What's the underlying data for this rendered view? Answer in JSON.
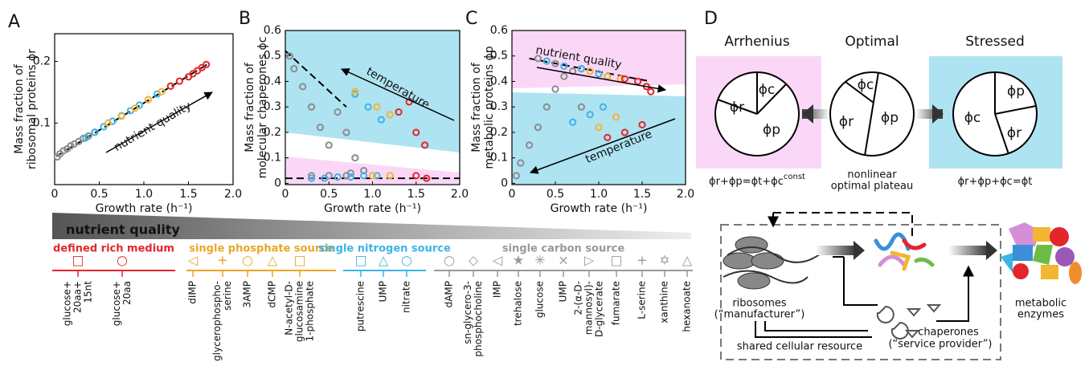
{
  "chart_data": [
    {
      "type": "scatter",
      "panel": "A",
      "ylabel": [
        "Mass fraction of",
        "ribosomal proteins ϕr"
      ],
      "xlabel": "Growth rate (h⁻¹)",
      "xlim": [
        0,
        2
      ],
      "xticks": [
        0,
        0.5,
        {
          "value": 1,
          "label": "1.0"
        },
        1.5,
        {
          "value": 2,
          "label": "2.0"
        }
      ],
      "ylim": [
        0,
        0.245
      ],
      "yticks": [
        0.1,
        0.2
      ],
      "annotations": [
        "nutrient quality"
      ],
      "fits": [
        {
          "color": "#000000",
          "x": [
            0.02,
            1.72
          ],
          "values": [
            0.046,
            0.196
          ]
        }
      ],
      "series": [
        {
          "color": "#8c8c8c",
          "x": [
            0.03,
            0.06,
            0.1,
            0.14,
            0.18,
            0.22,
            0.27,
            0.32,
            0.38,
            0.45
          ],
          "values": [
            0.045,
            0.05,
            0.055,
            0.058,
            0.063,
            0.066,
            0.07,
            0.075,
            0.079,
            0.085
          ]
        },
        {
          "color": "#3cb4e6",
          "x": [
            0.35,
            0.45,
            0.55,
            0.65,
            0.75,
            0.85,
            0.95,
            1.05,
            1.15
          ],
          "values": [
            0.076,
            0.085,
            0.094,
            0.103,
            0.112,
            0.12,
            0.129,
            0.138,
            0.147
          ]
        },
        {
          "color": "#f2b632",
          "x": [
            0.6,
            0.75,
            0.9,
            1.05,
            1.2,
            1.3
          ],
          "values": [
            0.1,
            0.111,
            0.124,
            0.138,
            0.151,
            0.16
          ]
        },
        {
          "color": "#e3262b",
          "x": [
            1.3,
            1.4,
            1.5,
            1.55,
            1.6,
            1.65,
            1.7
          ],
          "values": [
            0.16,
            0.168,
            0.175,
            0.18,
            0.185,
            0.19,
            0.195
          ]
        }
      ]
    },
    {
      "type": "scatter",
      "panel": "B",
      "ylabel": [
        "Mass fraction of",
        "molecular chaperones ϕc"
      ],
      "xlabel": "Growth rate (h⁻¹)",
      "xlim": [
        0,
        2
      ],
      "xticks": [
        0,
        0.5,
        {
          "value": 1,
          "label": "1.0"
        },
        1.5,
        {
          "value": 2,
          "label": "2.0"
        }
      ],
      "ylim": [
        -0.005,
        0.6
      ],
      "yticks": [
        0,
        0.1,
        0.2,
        0.3,
        0.4,
        0.5,
        0.6
      ],
      "annotations": [
        "temperature"
      ],
      "fits": [
        {
          "color": "#000000",
          "x": [
            0,
            2
          ],
          "values": [
            0.02,
            0.02
          ]
        },
        {
          "color": "#000000",
          "x": [
            0,
            0.7
          ],
          "values": [
            0.52,
            0.3
          ]
        }
      ],
      "series": [
        {
          "color": "#8c8c8c",
          "x": [
            0.05,
            0.1,
            0.2,
            0.3,
            0.4,
            0.5,
            0.6,
            0.7,
            0.8,
            0.9,
            0.3,
            0.5,
            0.7,
            0.75
          ],
          "values": [
            0.5,
            0.45,
            0.38,
            0.3,
            0.22,
            0.15,
            0.28,
            0.2,
            0.1,
            0.05,
            0.03,
            0.03,
            0.03,
            0.04
          ]
        },
        {
          "color": "#3cb4e6",
          "x": [
            0.3,
            0.45,
            0.6,
            0.75,
            0.9,
            1.05,
            0.8,
            0.95,
            1.1
          ],
          "values": [
            0.02,
            0.02,
            0.025,
            0.025,
            0.03,
            0.03,
            0.35,
            0.3,
            0.25
          ]
        },
        {
          "color": "#f2b632",
          "x": [
            0.8,
            1.05,
            1.2,
            1.0,
            1.2
          ],
          "values": [
            0.36,
            0.3,
            0.27,
            0.03,
            0.03
          ]
        },
        {
          "color": "#e3262b",
          "x": [
            1.3,
            1.42,
            1.5,
            1.6,
            1.5,
            1.62
          ],
          "values": [
            0.28,
            0.32,
            0.2,
            0.15,
            0.03,
            0.02
          ]
        }
      ]
    },
    {
      "type": "scatter",
      "panel": "C",
      "ylabel": [
        "Mass fraction of",
        "metabolic proteins ϕp"
      ],
      "xlabel": "Growth rate (h⁻¹)",
      "xlim": [
        0,
        2
      ],
      "xticks": [
        0,
        0.5,
        {
          "value": 1,
          "label": "1.0"
        },
        1.5,
        {
          "value": 2,
          "label": "2.0"
        }
      ],
      "ylim": [
        -0.005,
        0.6
      ],
      "yticks": [
        0,
        0.1,
        0.2,
        0.3,
        0.4,
        0.5,
        0.6
      ],
      "annotations": [
        "nutrient quality",
        "temperature"
      ],
      "fits": [
        {
          "color": "#000000",
          "x": [
            0.2,
            1.6
          ],
          "values": [
            0.49,
            0.4
          ]
        }
      ],
      "series": [
        {
          "color": "#8c8c8c",
          "x": [
            0.05,
            0.1,
            0.2,
            0.3,
            0.4,
            0.5,
            0.6,
            0.7,
            0.8,
            0.3,
            0.5,
            0.8
          ],
          "values": [
            0.03,
            0.08,
            0.15,
            0.22,
            0.3,
            0.37,
            0.42,
            0.44,
            0.3,
            0.49,
            0.47,
            0.45
          ]
        },
        {
          "color": "#3cb4e6",
          "x": [
            0.4,
            0.6,
            0.8,
            1.0,
            1.1,
            0.7,
            0.9,
            1.05
          ],
          "values": [
            0.48,
            0.46,
            0.45,
            0.43,
            0.42,
            0.24,
            0.27,
            0.3
          ]
        },
        {
          "color": "#f2b632",
          "x": [
            0.9,
            1.1,
            1.25,
            1.0,
            1.2
          ],
          "values": [
            0.44,
            0.42,
            0.41,
            0.22,
            0.26
          ]
        },
        {
          "color": "#e3262b",
          "x": [
            1.3,
            1.45,
            1.55,
            1.6,
            1.1,
            1.3,
            1.5
          ],
          "values": [
            0.41,
            0.4,
            0.38,
            0.36,
            0.18,
            0.2,
            0.23
          ]
        }
      ]
    }
  ],
  "legend": {
    "title": "nutrient quality",
    "groups": [
      {
        "name": "defined rich medium",
        "color": "#e3262b",
        "items": [
          {
            "marker": "□",
            "label": [
              "glucose+",
              "20aa+",
              "15nt"
            ]
          },
          {
            "marker": "○",
            "label": [
              "glucose+",
              "20aa"
            ]
          }
        ]
      },
      {
        "name": "single phosphate source",
        "color": "#e8a823",
        "items": [
          {
            "marker": "◁",
            "label": [
              "dIMP"
            ]
          },
          {
            "marker": "+",
            "label": [
              "glycerophospho-",
              "serine"
            ]
          },
          {
            "marker": "○",
            "label": [
              "3AMP"
            ]
          },
          {
            "marker": "△",
            "label": [
              "dCMP"
            ]
          },
          {
            "marker": "□",
            "label": [
              "N-acetyl-D-",
              "glucosamine",
              "1-phosphate"
            ]
          }
        ]
      },
      {
        "name": "single nitrogen source",
        "color": "#3cb4e6",
        "items": [
          {
            "marker": "□",
            "label": [
              "putrescine"
            ]
          },
          {
            "marker": "△",
            "label": [
              "UMP"
            ]
          },
          {
            "marker": "○",
            "label": [
              "nitrate"
            ]
          }
        ]
      },
      {
        "name": "single carbon source",
        "color": "#999999",
        "items": [
          {
            "marker": "○",
            "label": [
              "dAMP"
            ]
          },
          {
            "marker": "◇",
            "label": [
              "sn-glycero-3-",
              "phosphocholine"
            ]
          },
          {
            "marker": "◁",
            "label": [
              "IMP"
            ]
          },
          {
            "marker": "★",
            "label": [
              "trehalose"
            ]
          },
          {
            "marker": "✳",
            "label": [
              "glucose"
            ]
          },
          {
            "marker": "×",
            "label": [
              "UMP"
            ]
          },
          {
            "marker": "▷",
            "label": [
              "2-(α-D-",
              "mannosyl)-",
              "D-glycerate"
            ]
          },
          {
            "marker": "□",
            "label": [
              "fumarate"
            ]
          },
          {
            "marker": "+",
            "label": [
              "L-serine"
            ]
          },
          {
            "marker": "✡",
            "label": [
              "xanthine"
            ]
          },
          {
            "marker": "△",
            "label": [
              "hexanoate"
            ]
          }
        ]
      }
    ]
  },
  "diagram": {
    "panel": "D",
    "pies": [
      {
        "title": "Arrhenius",
        "labels": [
          "ϕc",
          "ϕr",
          "ϕp"
        ],
        "formula": "ϕr+ϕp=ϕt+ϕc",
        "formula_sup": "const"
      },
      {
        "title": "Optimal",
        "labels": [
          "ϕc",
          "ϕr",
          "ϕp"
        ],
        "note": [
          "nonlinear",
          "optimal plateau"
        ]
      },
      {
        "title": "Stressed",
        "labels": [
          "ϕp",
          "ϕc",
          "ϕr"
        ],
        "formula": "ϕr+ϕp+ϕc=ϕt"
      }
    ],
    "ribosomes": [
      "ribosomes",
      "(“manufacturer”)"
    ],
    "chaperones": [
      "chaperones",
      "(“service provider”)"
    ],
    "resource": "shared cellular resource",
    "enzymes": [
      "metabolic",
      "enzymes"
    ]
  }
}
